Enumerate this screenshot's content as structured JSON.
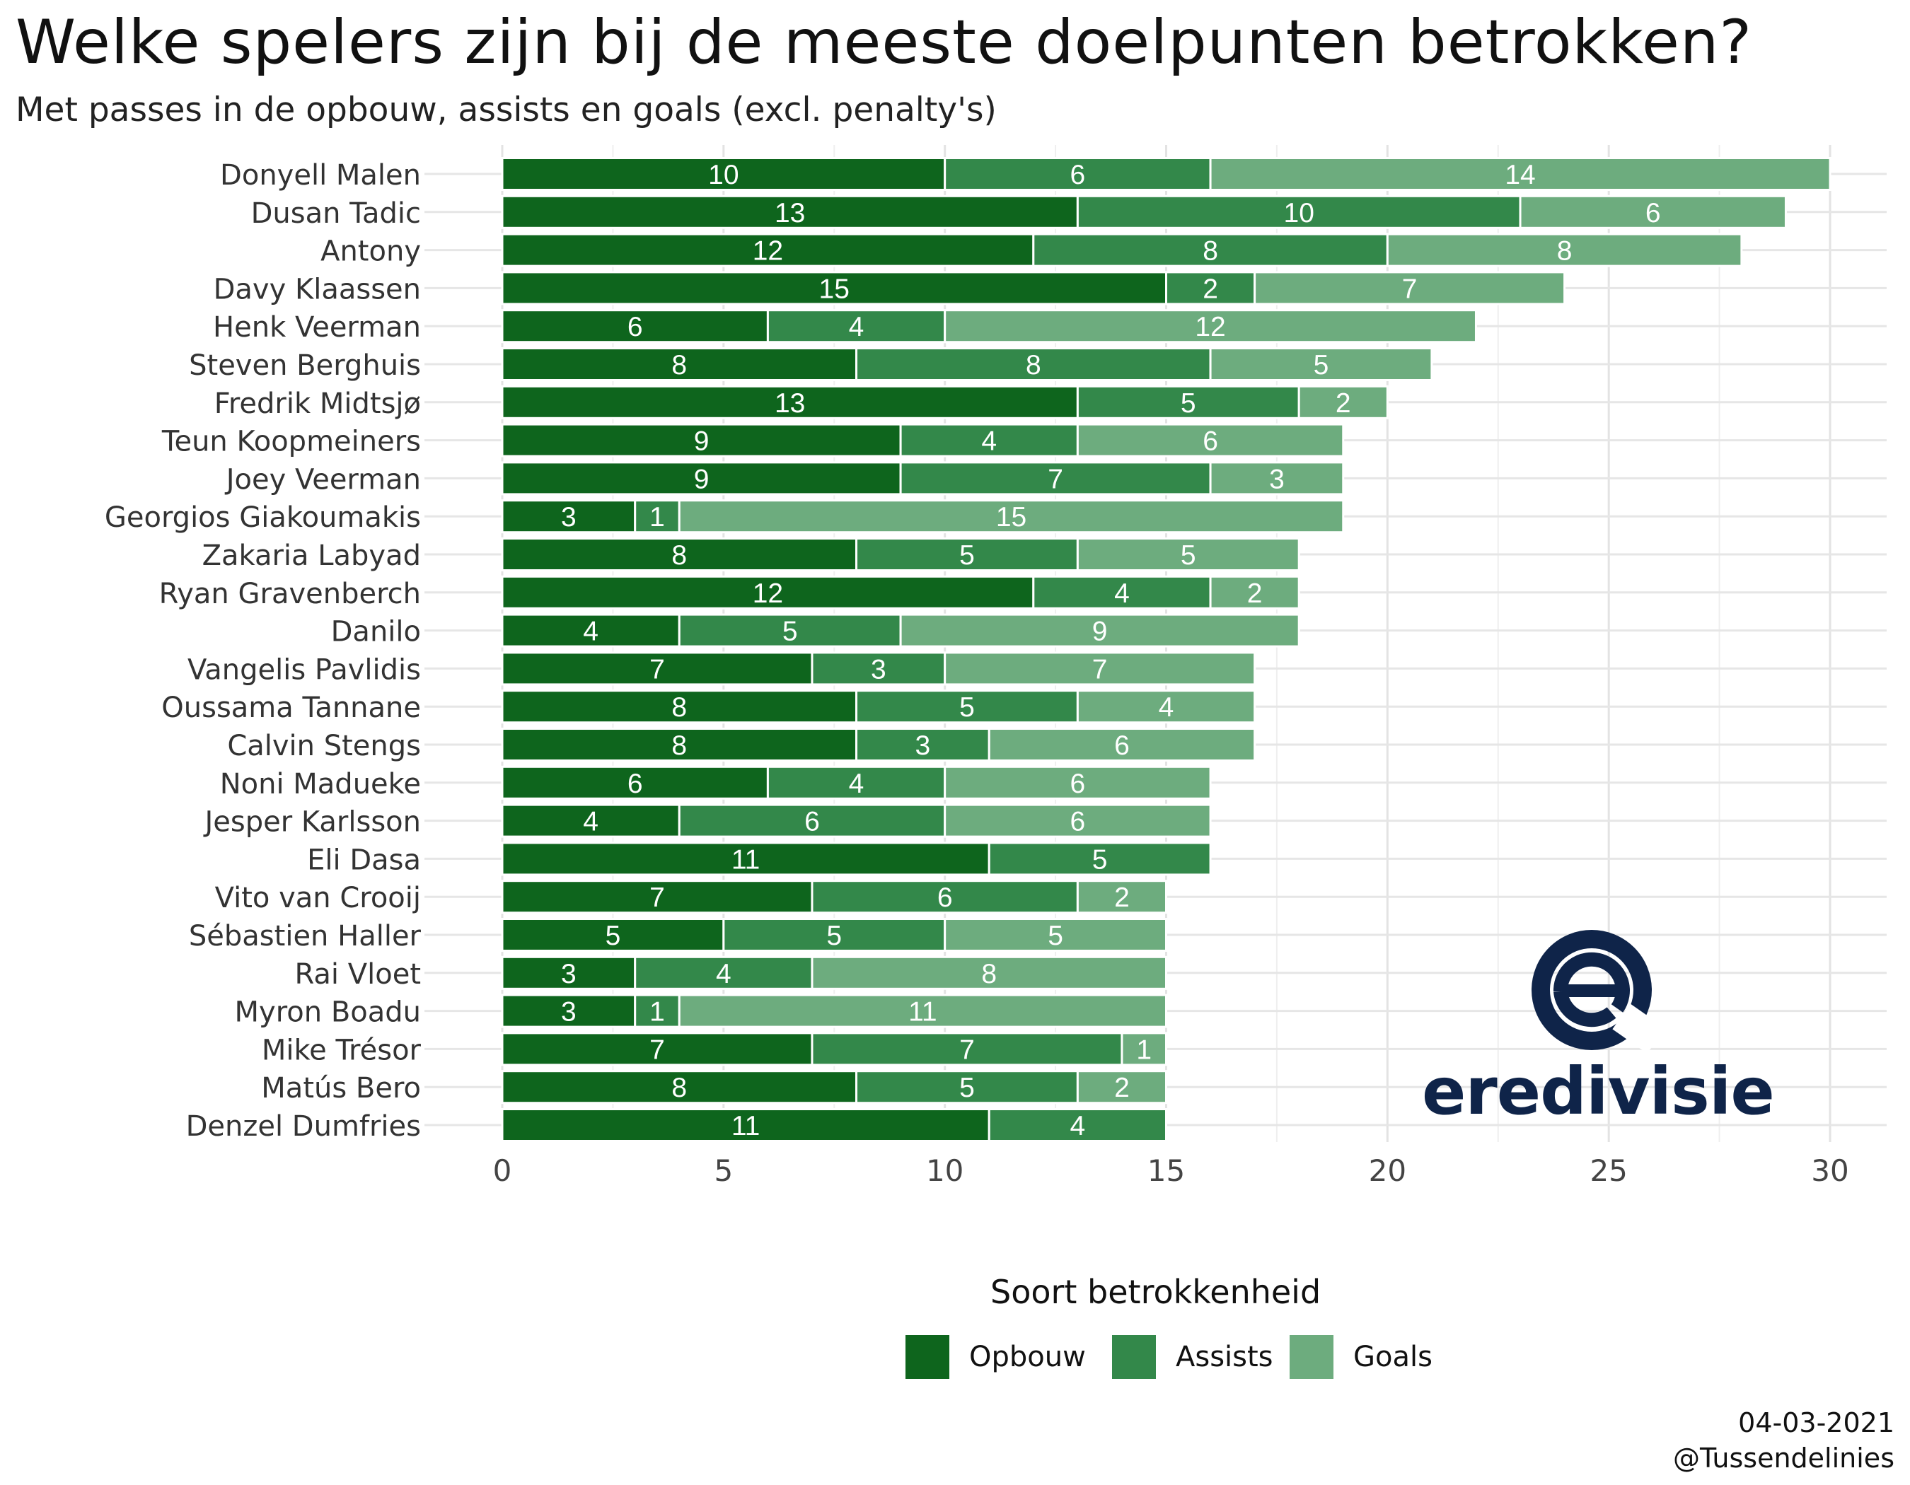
{
  "chart_data": {
    "type": "bar",
    "orientation": "horizontal",
    "stacked": true,
    "title": "Welke spelers zijn bij de meeste doelpunten betrokken?",
    "subtitle": "Met passes in de opbouw, assists en goals (excl. penalty's)",
    "categories": [
      "Donyell Malen",
      "Dusan Tadic",
      "Antony",
      "Davy Klaassen",
      "Henk Veerman",
      "Steven Berghuis",
      "Fredrik Midtsjø",
      "Teun Koopmeiners",
      "Joey Veerman",
      "Georgios Giakoumakis",
      "Zakaria Labyad",
      "Ryan Gravenberch",
      "Danilo",
      "Vangelis Pavlidis",
      "Oussama Tannane",
      "Calvin Stengs",
      "Noni Madueke",
      "Jesper Karlsson",
      "Eli Dasa",
      "Vito van Crooij",
      "Sébastien Haller",
      "Rai Vloet",
      "Myron Boadu",
      "Mike Trésor",
      "Matús Bero",
      "Denzel Dumfries"
    ],
    "series": [
      {
        "name": "Opbouw",
        "color": "#0e651d",
        "values": [
          10,
          13,
          12,
          15,
          6,
          8,
          13,
          9,
          9,
          3,
          8,
          12,
          4,
          7,
          8,
          8,
          6,
          4,
          11,
          7,
          5,
          3,
          3,
          7,
          8,
          11
        ]
      },
      {
        "name": "Assists",
        "color": "#33884a",
        "values": [
          6,
          10,
          8,
          2,
          4,
          8,
          5,
          4,
          7,
          1,
          5,
          4,
          5,
          3,
          5,
          3,
          4,
          6,
          5,
          6,
          5,
          4,
          1,
          7,
          5,
          4
        ]
      },
      {
        "name": "Goals",
        "color": "#6dac7e",
        "values": [
          14,
          6,
          8,
          7,
          12,
          5,
          2,
          6,
          3,
          15,
          5,
          2,
          9,
          7,
          4,
          6,
          6,
          6,
          0,
          2,
          5,
          8,
          11,
          1,
          2,
          0
        ]
      }
    ],
    "xlim": [
      0,
      30
    ],
    "x_ticks": [
      0,
      5,
      10,
      15,
      20,
      25,
      30
    ],
    "grid": true,
    "legend_title": "Soort betrokkenheid",
    "legend_position": "bottom"
  },
  "footer": {
    "date": "04-03-2021",
    "handle": "@Tussendelinies"
  },
  "logo": {
    "text": "eredivisie",
    "color": "#0f2449",
    "icon": "eredivisie-e-logo-icon"
  }
}
